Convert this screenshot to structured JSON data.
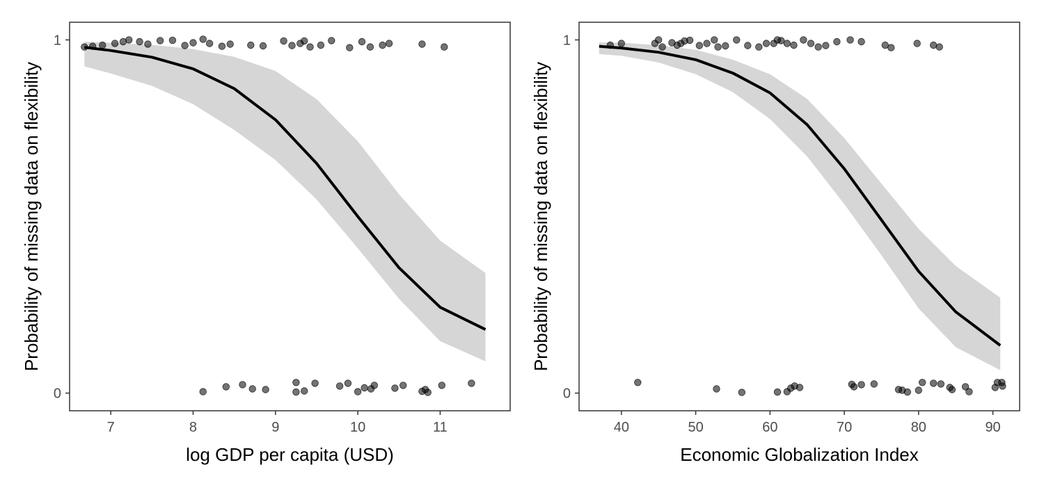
{
  "chart_data": [
    {
      "type": "line",
      "xlabel": "log GDP per capita (USD)",
      "ylabel": "Probability of missing data on flexibility",
      "xlim": [
        6.5,
        11.85
      ],
      "ylim": [
        -0.05,
        1.05
      ],
      "xticks": [
        7,
        8,
        9,
        10,
        11
      ],
      "yticks": [
        0,
        1
      ],
      "grid": false,
      "curve": {
        "x": [
          6.68,
          7.0,
          7.5,
          8.0,
          8.5,
          9.0,
          9.5,
          10.0,
          10.5,
          11.0,
          11.55
        ],
        "y": [
          0.979,
          0.97,
          0.951,
          0.918,
          0.862,
          0.774,
          0.65,
          0.5,
          0.355,
          0.243,
          0.18
        ],
        "ci_lower": [
          0.925,
          0.905,
          0.87,
          0.818,
          0.745,
          0.66,
          0.548,
          0.41,
          0.267,
          0.147,
          0.09
        ],
        "ci_upper": [
          0.995,
          0.992,
          0.986,
          0.974,
          0.952,
          0.912,
          0.832,
          0.713,
          0.563,
          0.432,
          0.34
        ]
      },
      "points": [
        {
          "x": 6.68,
          "y": 0.98
        },
        {
          "x": 6.78,
          "y": 0.982
        },
        {
          "x": 6.9,
          "y": 0.985
        },
        {
          "x": 7.05,
          "y": 0.99
        },
        {
          "x": 7.15,
          "y": 0.995
        },
        {
          "x": 7.22,
          "y": 1.0
        },
        {
          "x": 7.35,
          "y": 0.995
        },
        {
          "x": 7.45,
          "y": 0.988
        },
        {
          "x": 7.6,
          "y": 0.998
        },
        {
          "x": 7.75,
          "y": 0.999
        },
        {
          "x": 7.9,
          "y": 0.984
        },
        {
          "x": 8.0,
          "y": 0.992
        },
        {
          "x": 8.12,
          "y": 1.002
        },
        {
          "x": 8.2,
          "y": 0.99
        },
        {
          "x": 8.35,
          "y": 0.982
        },
        {
          "x": 8.45,
          "y": 0.988
        },
        {
          "x": 8.7,
          "y": 0.985
        },
        {
          "x": 8.85,
          "y": 0.983
        },
        {
          "x": 9.1,
          "y": 0.997
        },
        {
          "x": 9.2,
          "y": 0.984
        },
        {
          "x": 9.3,
          "y": 0.99
        },
        {
          "x": 9.35,
          "y": 0.997
        },
        {
          "x": 9.42,
          "y": 0.98
        },
        {
          "x": 9.55,
          "y": 0.985
        },
        {
          "x": 9.68,
          "y": 0.998
        },
        {
          "x": 9.9,
          "y": 0.978
        },
        {
          "x": 10.05,
          "y": 0.995
        },
        {
          "x": 10.15,
          "y": 0.98
        },
        {
          "x": 10.3,
          "y": 0.985
        },
        {
          "x": 10.38,
          "y": 0.99
        },
        {
          "x": 10.78,
          "y": 0.988
        },
        {
          "x": 11.05,
          "y": 0.98
        },
        {
          "x": 8.12,
          "y": 0.004
        },
        {
          "x": 8.4,
          "y": 0.018
        },
        {
          "x": 8.6,
          "y": 0.024
        },
        {
          "x": 8.72,
          "y": 0.012
        },
        {
          "x": 8.88,
          "y": 0.01
        },
        {
          "x": 9.25,
          "y": 0.003
        },
        {
          "x": 9.35,
          "y": 0.006
        },
        {
          "x": 9.25,
          "y": 0.03
        },
        {
          "x": 9.48,
          "y": 0.028
        },
        {
          "x": 9.78,
          "y": 0.02
        },
        {
          "x": 9.88,
          "y": 0.028
        },
        {
          "x": 10.0,
          "y": 0.004
        },
        {
          "x": 10.08,
          "y": 0.015
        },
        {
          "x": 10.16,
          "y": 0.012
        },
        {
          "x": 10.2,
          "y": 0.022
        },
        {
          "x": 10.45,
          "y": 0.014
        },
        {
          "x": 10.55,
          "y": 0.022
        },
        {
          "x": 10.78,
          "y": 0.005
        },
        {
          "x": 10.82,
          "y": 0.01
        },
        {
          "x": 11.02,
          "y": 0.022
        },
        {
          "x": 11.38,
          "y": 0.028
        },
        {
          "x": 10.85,
          "y": 0.002
        }
      ]
    },
    {
      "type": "line",
      "xlabel": "Economic Globalization Index",
      "ylabel": "Probability of missing data on flexibility",
      "xlim": [
        34.3,
        93.6
      ],
      "ylim": [
        -0.05,
        1.05
      ],
      "xticks": [
        40,
        50,
        60,
        70,
        80,
        90
      ],
      "yticks": [
        0,
        1
      ],
      "grid": false,
      "curve": {
        "x": [
          37,
          40,
          45,
          50,
          55,
          60,
          65,
          70,
          75,
          80,
          85,
          91
        ],
        "y": [
          0.982,
          0.977,
          0.965,
          0.944,
          0.906,
          0.85,
          0.76,
          0.635,
          0.49,
          0.345,
          0.23,
          0.135
        ],
        "ci_lower": [
          0.96,
          0.955,
          0.936,
          0.903,
          0.852,
          0.776,
          0.67,
          0.535,
          0.39,
          0.24,
          0.13,
          0.065
        ],
        "ci_upper": [
          0.993,
          0.992,
          0.985,
          0.972,
          0.944,
          0.903,
          0.833,
          0.722,
          0.593,
          0.465,
          0.36,
          0.27
        ]
      },
      "points": [
        {
          "x": 38.5,
          "y": 0.985
        },
        {
          "x": 40.0,
          "y": 0.99
        },
        {
          "x": 44.5,
          "y": 0.99
        },
        {
          "x": 45.0,
          "y": 1.0
        },
        {
          "x": 45.5,
          "y": 0.98
        },
        {
          "x": 46.8,
          "y": 0.992
        },
        {
          "x": 47.5,
          "y": 0.985
        },
        {
          "x": 48.0,
          "y": 0.99
        },
        {
          "x": 48.5,
          "y": 0.997
        },
        {
          "x": 49.2,
          "y": 0.999
        },
        {
          "x": 50.5,
          "y": 0.984
        },
        {
          "x": 51.5,
          "y": 0.99
        },
        {
          "x": 52.5,
          "y": 1.0
        },
        {
          "x": 53.0,
          "y": 0.98
        },
        {
          "x": 54.0,
          "y": 0.983
        },
        {
          "x": 55.5,
          "y": 1.0
        },
        {
          "x": 57.0,
          "y": 0.984
        },
        {
          "x": 58.5,
          "y": 0.98
        },
        {
          "x": 59.5,
          "y": 0.99
        },
        {
          "x": 60.5,
          "y": 0.99
        },
        {
          "x": 61.0,
          "y": 1.0
        },
        {
          "x": 61.5,
          "y": 0.998
        },
        {
          "x": 62.3,
          "y": 0.99
        },
        {
          "x": 63.2,
          "y": 0.985
        },
        {
          "x": 64.5,
          "y": 1.0
        },
        {
          "x": 65.5,
          "y": 0.99
        },
        {
          "x": 66.5,
          "y": 0.98
        },
        {
          "x": 67.5,
          "y": 0.984
        },
        {
          "x": 69.0,
          "y": 0.995
        },
        {
          "x": 70.8,
          "y": 1.0
        },
        {
          "x": 72.3,
          "y": 0.995
        },
        {
          "x": 75.5,
          "y": 0.985
        },
        {
          "x": 76.3,
          "y": 0.978
        },
        {
          "x": 79.8,
          "y": 0.99
        },
        {
          "x": 82.0,
          "y": 0.985
        },
        {
          "x": 82.8,
          "y": 0.98
        },
        {
          "x": 42.2,
          "y": 0.03
        },
        {
          "x": 52.8,
          "y": 0.012
        },
        {
          "x": 56.2,
          "y": 0.002
        },
        {
          "x": 61.0,
          "y": 0.003
        },
        {
          "x": 62.3,
          "y": 0.004
        },
        {
          "x": 62.8,
          "y": 0.014
        },
        {
          "x": 63.3,
          "y": 0.02
        },
        {
          "x": 64.0,
          "y": 0.016
        },
        {
          "x": 71.0,
          "y": 0.025
        },
        {
          "x": 71.3,
          "y": 0.018
        },
        {
          "x": 72.3,
          "y": 0.024
        },
        {
          "x": 74.0,
          "y": 0.026
        },
        {
          "x": 77.3,
          "y": 0.01
        },
        {
          "x": 77.8,
          "y": 0.008
        },
        {
          "x": 78.5,
          "y": 0.003
        },
        {
          "x": 80.0,
          "y": 0.008
        },
        {
          "x": 80.5,
          "y": 0.03
        },
        {
          "x": 82.0,
          "y": 0.028
        },
        {
          "x": 83.0,
          "y": 0.026
        },
        {
          "x": 84.2,
          "y": 0.016
        },
        {
          "x": 84.5,
          "y": 0.01
        },
        {
          "x": 86.3,
          "y": 0.018
        },
        {
          "x": 86.8,
          "y": 0.004
        },
        {
          "x": 90.3,
          "y": 0.016
        },
        {
          "x": 90.6,
          "y": 0.03
        },
        {
          "x": 91.2,
          "y": 0.03
        },
        {
          "x": 91.3,
          "y": 0.02
        }
      ]
    }
  ]
}
